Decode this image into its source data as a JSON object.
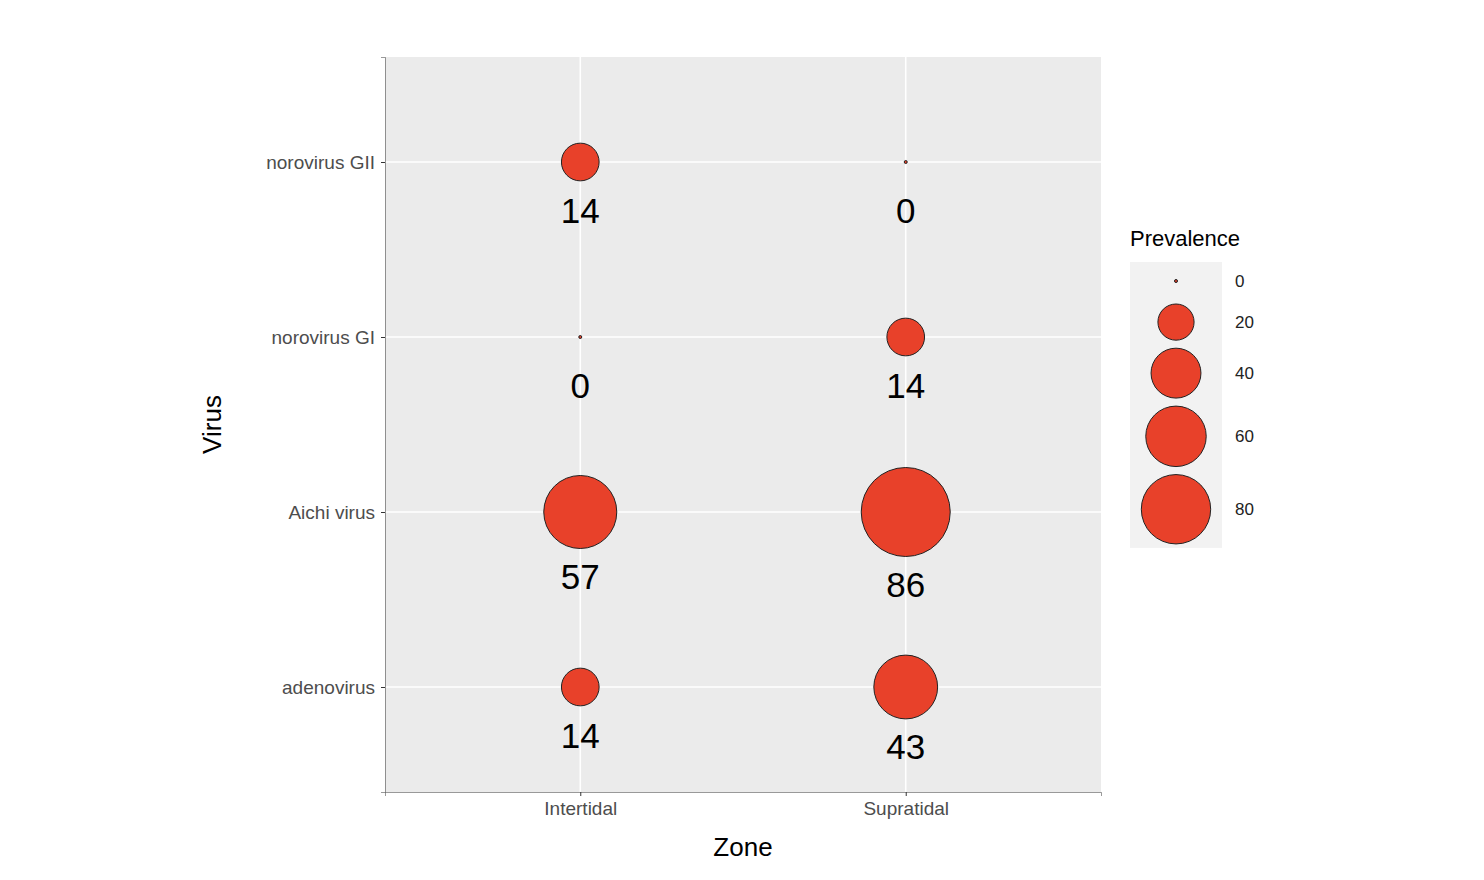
{
  "chart_data": {
    "type": "bubble",
    "x_label": "Zone",
    "y_label": "Virus",
    "categories": [
      "Intertidal",
      "Supratidal"
    ],
    "y_categories": [
      "adenovirus",
      "Aichi virus",
      "norovirus GI",
      "norovirus GII"
    ],
    "values": [
      [
        14,
        43
      ],
      [
        57,
        86
      ],
      [
        0,
        14
      ],
      [
        14,
        0
      ]
    ],
    "color": "#e8412a",
    "grid": true,
    "data_labels": true,
    "size_legend": {
      "title": "Prevalence",
      "values": [
        0,
        20,
        40,
        60,
        80
      ]
    }
  }
}
